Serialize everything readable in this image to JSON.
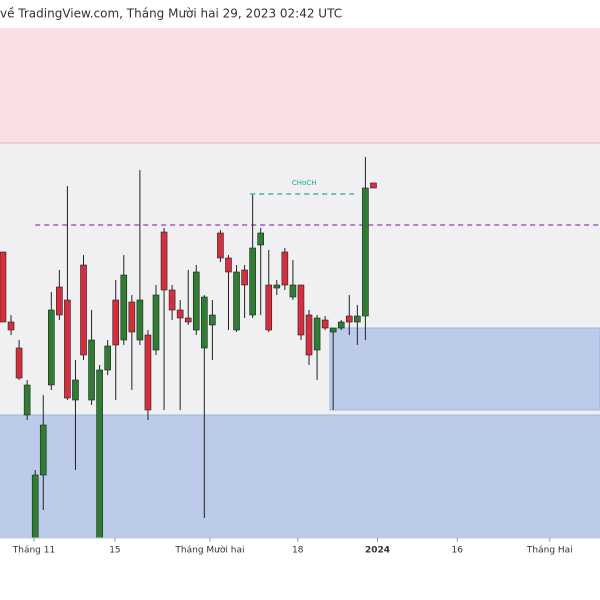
{
  "header": {
    "source": "về TradingView.com, Tháng Mười hai 29, 2023 02:42 UTC"
  },
  "chart_data": {
    "type": "candlestick",
    "series": [
      {
        "up_color": "#2e7d32",
        "down_color": "#d32f3f",
        "open": [
          286,
          216,
          190,
          123,
          0,
          63,
          153,
          251,
          238,
          138,
          273,
          138,
          0,
          168,
          238,
          198,
          236,
          198,
          203,
          188,
          306,
          248,
          228,
          220,
          208,
          190,
          213,
          305,
          280,
          208,
          268,
          223,
          293,
          253,
          250,
          286,
          241,
          253,
          223,
          188,
          218,
          206,
          210,
          222,
          216,
          222,
          355
        ],
        "high": [
          286,
          223,
          198,
          158,
          68,
          143,
          246,
          268,
          352,
          178,
          283,
          228,
          173,
          198,
          258,
          283,
          243,
          368,
          208,
          253,
          310,
          253,
          238,
          268,
          273,
          243,
          238,
          308,
          283,
          273,
          273,
          343,
          310,
          288,
          258,
          290,
          278,
          253,
          228,
          223,
          222,
          210,
          218,
          243,
          233,
          381,
          355
        ],
        "low": [
          216,
          203,
          158,
          118,
          0,
          28,
          148,
          218,
          138,
          68,
          178,
          133,
          0,
          163,
          138,
          193,
          148,
          193,
          118,
          183,
          128,
          218,
          128,
          213,
          203,
          20,
          178,
          276,
          208,
          206,
          220,
          220,
          223,
          206,
          243,
          248,
          238,
          198,
          173,
          158,
          208,
          128,
          208,
          203,
          193,
          198,
          350
        ],
        "close": [
          216,
          208,
          160,
          153,
          63,
          113,
          228,
          223,
          140,
          158,
          183,
          198,
          168,
          192,
          193,
          263,
          206,
          238,
          128,
          243,
          248,
          228,
          220,
          216,
          266,
          241,
          223,
          280,
          266,
          266,
          253,
          290,
          305,
          208,
          253,
          253,
          253,
          203,
          183,
          220,
          210,
          210,
          216,
          216,
          222,
          350,
          350
        ]
      }
    ],
    "zones": [
      {
        "from": 395,
        "to": 510,
        "start": -0.37,
        "end": 74.13,
        "color": "#f9dfe2"
      },
      {
        "from": 123,
        "to": 395,
        "start": -0.37,
        "end": 74.13,
        "color": "#f0f0f2"
      },
      {
        "from": 0,
        "to": 123,
        "start": -0.37,
        "end": 74.13,
        "color": "#bccbe9"
      },
      {
        "from": 128,
        "to": 210,
        "start": 40.6,
        "end": 74.13,
        "color": "#bccbe9"
      }
    ],
    "levels": [
      {
        "value": 313,
        "start": 4,
        "end": 74.13,
        "color": "#8e3fb8"
      },
      {
        "value": 344,
        "start": 30.7,
        "end": 44.1,
        "color": "#26a69a",
        "label": "CHoCH"
      }
    ],
    "xlim": [
      -0.37,
      74.13
    ],
    "ylim": [
      0,
      510
    ],
    "xticks": [
      {
        "value": 3.85,
        "label": "Tháng 11"
      },
      {
        "value": 13.9,
        "label": "15"
      },
      {
        "value": 25.7,
        "label": "Tháng Mười hai"
      },
      {
        "value": 36.6,
        "label": "18"
      },
      {
        "value": 46.5,
        "label": "2024",
        "bold": true
      },
      {
        "value": 56.4,
        "label": "16"
      },
      {
        "value": 67.9,
        "label": "Tháng Hai"
      }
    ]
  }
}
